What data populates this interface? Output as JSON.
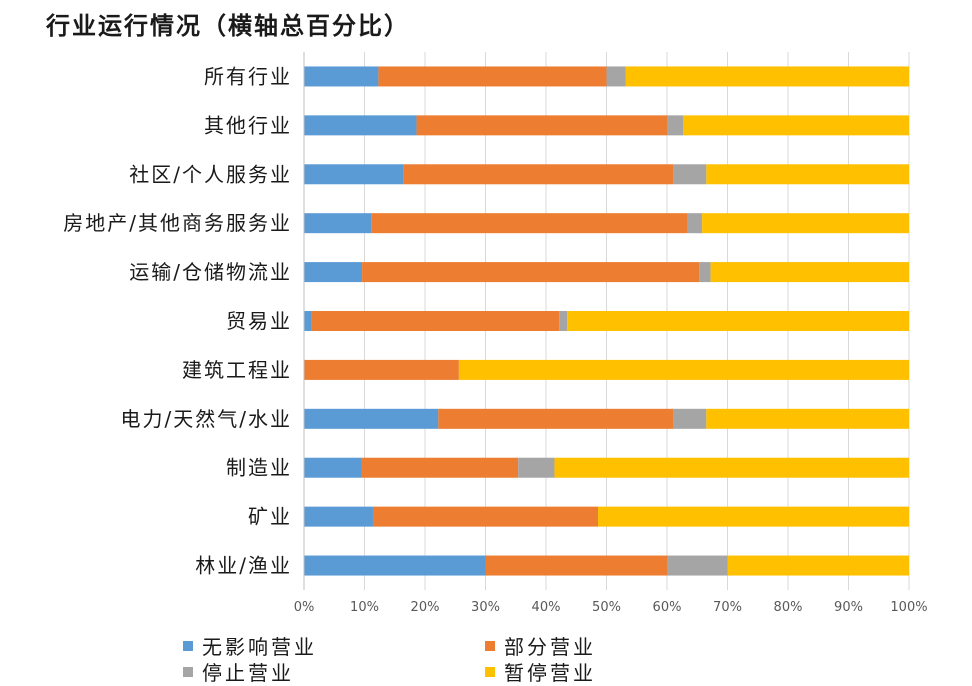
{
  "chart_data": {
    "type": "bar",
    "orientation": "horizontal",
    "stacked": "percent",
    "title": "行业运行情况（横轴总百分比）",
    "categories": [
      "所有行业",
      "其他行业",
      "社区/个人服务业",
      "房地产/其他商务服务业",
      "运输/仓储物流业",
      "贸易业",
      "建筑工程业",
      "电力/天然气/水业",
      "制造业",
      "矿业",
      "林业/渔业"
    ],
    "series": [
      {
        "name": "无影响营业",
        "color": "#5B9BD5",
        "values": [
          12.3,
          18.6,
          16.5,
          11.1,
          9.6,
          1.3,
          0,
          22.2,
          9.5,
          11.4,
          30.0
        ]
      },
      {
        "name": "部分营业",
        "color": "#ED7D31",
        "values": [
          37.7,
          41.4,
          44.5,
          52.3,
          55.7,
          40.9,
          25.6,
          38.8,
          25.9,
          37.2,
          30.0
        ]
      },
      {
        "name": "停止营业",
        "color": "#A5A5A5",
        "values": [
          3.2,
          2.7,
          5.5,
          2.4,
          1.9,
          1.3,
          0,
          5.5,
          6.0,
          0,
          10.0
        ]
      },
      {
        "name": "暂停营业",
        "color": "#FFC000",
        "values": [
          46.8,
          37.3,
          33.5,
          34.2,
          32.8,
          56.5,
          74.4,
          33.5,
          58.6,
          51.4,
          30.0
        ]
      }
    ],
    "xlim": [
      0,
      100
    ],
    "xticks": [
      0,
      10,
      20,
      30,
      40,
      50,
      60,
      70,
      80,
      90,
      100
    ],
    "xtick_suffix": "%",
    "grid": true,
    "legend_position": "bottom"
  }
}
